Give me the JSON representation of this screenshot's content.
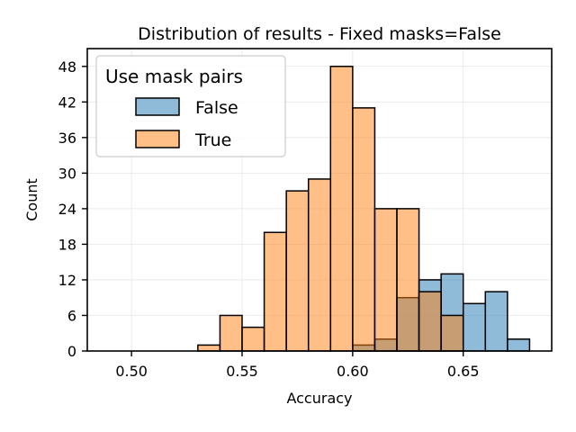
{
  "chart_data": {
    "type": "bar",
    "subtype": "histogram-overlay",
    "title": "Distribution of results - Fixed masks=False",
    "xlabel": "Accuracy",
    "ylabel": "Count",
    "xlim": [
      0.48,
      0.69
    ],
    "ylim": [
      0,
      51
    ],
    "xticks": [
      0.5,
      0.55,
      0.6,
      0.65
    ],
    "xtick_labels": [
      "0.50",
      "0.55",
      "0.60",
      "0.65"
    ],
    "yticks": [
      0,
      6,
      12,
      18,
      24,
      30,
      36,
      42,
      48
    ],
    "grid": true,
    "legend": {
      "title": "Use mask pairs",
      "placement": "top-left"
    },
    "bin_edges": [
      0.49,
      0.5,
      0.51,
      0.52,
      0.53,
      0.54,
      0.55,
      0.56,
      0.57,
      0.58,
      0.59,
      0.6,
      0.61,
      0.62,
      0.63,
      0.64,
      0.65,
      0.66,
      0.67,
      0.68
    ],
    "series": [
      {
        "name": "False",
        "color": "#1f77b4",
        "values": [
          0,
          0,
          0,
          0,
          0,
          0,
          0,
          0,
          0,
          0,
          0,
          1,
          2,
          9,
          12,
          13,
          8,
          10,
          2
        ]
      },
      {
        "name": "True",
        "color": "#ff7f0e",
        "values": [
          0,
          0,
          0,
          0,
          1,
          6,
          4,
          20,
          27,
          29,
          48,
          41,
          24,
          24,
          10,
          6,
          0,
          0,
          0
        ]
      }
    ]
  }
}
